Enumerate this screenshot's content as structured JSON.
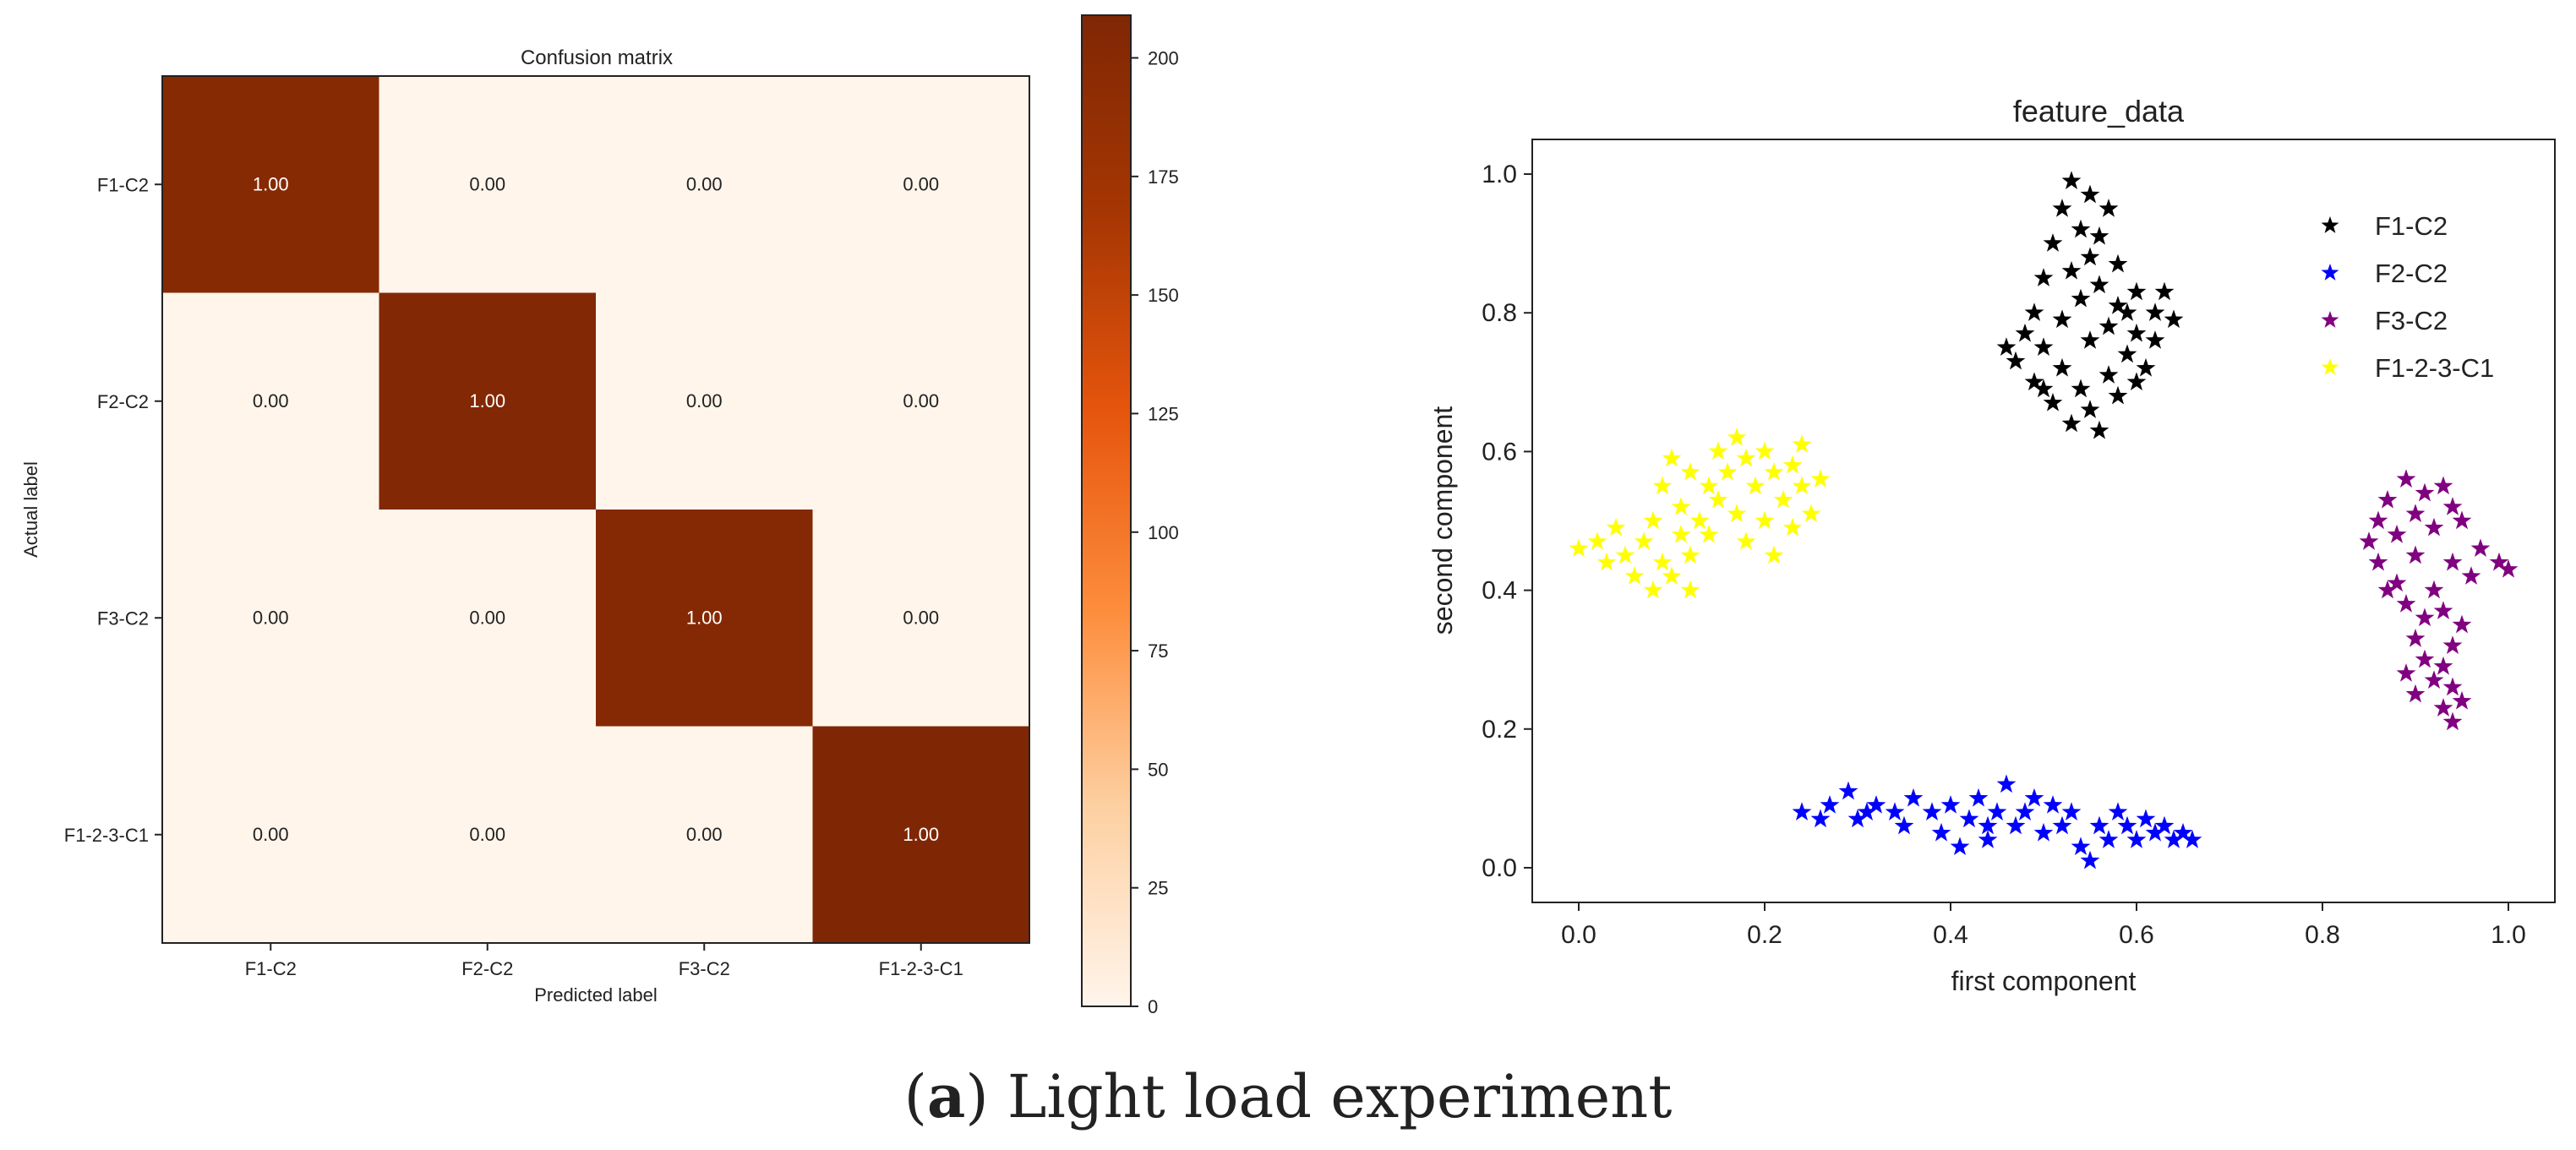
{
  "chart_data": [
    {
      "type": "heatmap",
      "title": "Confusion matrix",
      "xlabel": "Predicted label",
      "ylabel": "Actual label",
      "x_categories": [
        "F1-C2",
        "F2-C2",
        "F3-C2",
        "F1-2-3-C1"
      ],
      "y_categories": [
        "F1-C2",
        "F2-C2",
        "F3-C2",
        "F1-2-3-C1"
      ],
      "cell_labels": [
        [
          "1.00",
          "0.00",
          "0.00",
          "0.00"
        ],
        [
          "0.00",
          "1.00",
          "0.00",
          "0.00"
        ],
        [
          "0.00",
          "0.00",
          "1.00",
          "0.00"
        ],
        [
          "0.00",
          "0.00",
          "0.00",
          "1.00"
        ]
      ],
      "counts": [
        [
          201,
          0,
          0,
          0
        ],
        [
          0,
          206,
          0,
          0
        ],
        [
          0,
          0,
          203,
          0
        ],
        [
          0,
          0,
          0,
          209
        ]
      ],
      "colorbar": {
        "range": [
          0,
          209
        ],
        "ticks": [
          0,
          25,
          50,
          75,
          100,
          125,
          150,
          175,
          200
        ],
        "colormap": "Oranges",
        "colors": [
          "#fff5eb",
          "#fdd0a2",
          "#fd8d3c",
          "#e6550d",
          "#a63603",
          "#7f2704"
        ]
      },
      "grid": false
    },
    {
      "type": "scatter",
      "title": "feature_data",
      "xlabel": "first component",
      "ylabel": "second component",
      "xlim": [
        -0.05,
        1.05
      ],
      "ylim": [
        -0.05,
        1.05
      ],
      "xticks": [
        0.0,
        0.2,
        0.4,
        0.6,
        0.8,
        1.0
      ],
      "yticks": [
        0.0,
        0.2,
        0.4,
        0.6,
        0.8,
        1.0
      ],
      "marker": "star",
      "legend_position": "top-right",
      "grid": false,
      "series": [
        {
          "name": "F1-C2",
          "color": "#000000",
          "points": [
            [
              0.53,
              0.99
            ],
            [
              0.55,
              0.97
            ],
            [
              0.57,
              0.95
            ],
            [
              0.52,
              0.95
            ],
            [
              0.54,
              0.92
            ],
            [
              0.56,
              0.91
            ],
            [
              0.51,
              0.9
            ],
            [
              0.55,
              0.88
            ],
            [
              0.58,
              0.87
            ],
            [
              0.53,
              0.86
            ],
            [
              0.5,
              0.85
            ],
            [
              0.56,
              0.84
            ],
            [
              0.6,
              0.83
            ],
            [
              0.63,
              0.83
            ],
            [
              0.54,
              0.82
            ],
            [
              0.58,
              0.81
            ],
            [
              0.62,
              0.8
            ],
            [
              0.49,
              0.8
            ],
            [
              0.52,
              0.79
            ],
            [
              0.57,
              0.78
            ],
            [
              0.6,
              0.77
            ],
            [
              0.64,
              0.79
            ],
            [
              0.48,
              0.77
            ],
            [
              0.5,
              0.75
            ],
            [
              0.55,
              0.76
            ],
            [
              0.59,
              0.74
            ],
            [
              0.62,
              0.76
            ],
            [
              0.47,
              0.73
            ],
            [
              0.52,
              0.72
            ],
            [
              0.57,
              0.71
            ],
            [
              0.61,
              0.72
            ],
            [
              0.49,
              0.7
            ],
            [
              0.54,
              0.69
            ],
            [
              0.58,
              0.68
            ],
            [
              0.51,
              0.67
            ],
            [
              0.55,
              0.66
            ],
            [
              0.53,
              0.64
            ],
            [
              0.56,
              0.63
            ],
            [
              0.5,
              0.69
            ],
            [
              0.6,
              0.7
            ],
            [
              0.46,
              0.75
            ],
            [
              0.59,
              0.8
            ]
          ]
        },
        {
          "name": "F2-C2",
          "color": "#0000ff",
          "points": [
            [
              0.24,
              0.08
            ],
            [
              0.27,
              0.09
            ],
            [
              0.29,
              0.11
            ],
            [
              0.3,
              0.07
            ],
            [
              0.32,
              0.09
            ],
            [
              0.34,
              0.08
            ],
            [
              0.36,
              0.1
            ],
            [
              0.38,
              0.08
            ],
            [
              0.39,
              0.05
            ],
            [
              0.4,
              0.09
            ],
            [
              0.41,
              0.03
            ],
            [
              0.42,
              0.07
            ],
            [
              0.43,
              0.1
            ],
            [
              0.44,
              0.06
            ],
            [
              0.45,
              0.08
            ],
            [
              0.46,
              0.12
            ],
            [
              0.47,
              0.06
            ],
            [
              0.48,
              0.08
            ],
            [
              0.5,
              0.05
            ],
            [
              0.51,
              0.09
            ],
            [
              0.52,
              0.06
            ],
            [
              0.53,
              0.08
            ],
            [
              0.54,
              0.03
            ],
            [
              0.55,
              0.01
            ],
            [
              0.56,
              0.06
            ],
            [
              0.57,
              0.04
            ],
            [
              0.58,
              0.08
            ],
            [
              0.59,
              0.06
            ],
            [
              0.6,
              0.04
            ],
            [
              0.61,
              0.07
            ],
            [
              0.62,
              0.05
            ],
            [
              0.63,
              0.06
            ],
            [
              0.64,
              0.04
            ],
            [
              0.65,
              0.05
            ],
            [
              0.66,
              0.04
            ],
            [
              0.35,
              0.06
            ],
            [
              0.31,
              0.08
            ],
            [
              0.26,
              0.07
            ],
            [
              0.49,
              0.1
            ],
            [
              0.44,
              0.04
            ]
          ]
        },
        {
          "name": "F3-C2",
          "color": "#800080",
          "points": [
            [
              0.87,
              0.53
            ],
            [
              0.89,
              0.56
            ],
            [
              0.91,
              0.54
            ],
            [
              0.93,
              0.55
            ],
            [
              0.86,
              0.5
            ],
            [
              0.9,
              0.51
            ],
            [
              0.94,
              0.52
            ],
            [
              0.85,
              0.47
            ],
            [
              0.88,
              0.48
            ],
            [
              0.92,
              0.49
            ],
            [
              0.95,
              0.5
            ],
            [
              0.97,
              0.46
            ],
            [
              0.99,
              0.44
            ],
            [
              1.0,
              0.43
            ],
            [
              0.86,
              0.44
            ],
            [
              0.9,
              0.45
            ],
            [
              0.94,
              0.44
            ],
            [
              0.96,
              0.42
            ],
            [
              0.88,
              0.41
            ],
            [
              0.92,
              0.4
            ],
            [
              0.89,
              0.38
            ],
            [
              0.91,
              0.36
            ],
            [
              0.93,
              0.37
            ],
            [
              0.95,
              0.35
            ],
            [
              0.9,
              0.33
            ],
            [
              0.94,
              0.32
            ],
            [
              0.91,
              0.3
            ],
            [
              0.93,
              0.29
            ],
            [
              0.89,
              0.28
            ],
            [
              0.92,
              0.27
            ],
            [
              0.94,
              0.26
            ],
            [
              0.9,
              0.25
            ],
            [
              0.93,
              0.23
            ],
            [
              0.94,
              0.21
            ],
            [
              0.95,
              0.24
            ],
            [
              0.87,
              0.4
            ]
          ]
        },
        {
          "name": "F1-2-3-C1",
          "color": "#ffff00",
          "points": [
            [
              0.0,
              0.46
            ],
            [
              0.02,
              0.47
            ],
            [
              0.03,
              0.44
            ],
            [
              0.04,
              0.49
            ],
            [
              0.05,
              0.45
            ],
            [
              0.06,
              0.42
            ],
            [
              0.07,
              0.47
            ],
            [
              0.08,
              0.4
            ],
            [
              0.09,
              0.44
            ],
            [
              0.1,
              0.42
            ],
            [
              0.11,
              0.48
            ],
            [
              0.12,
              0.45
            ],
            [
              0.13,
              0.5
            ],
            [
              0.14,
              0.48
            ],
            [
              0.11,
              0.52
            ],
            [
              0.09,
              0.55
            ],
            [
              0.1,
              0.59
            ],
            [
              0.12,
              0.57
            ],
            [
              0.14,
              0.55
            ],
            [
              0.15,
              0.6
            ],
            [
              0.16,
              0.57
            ],
            [
              0.17,
              0.62
            ],
            [
              0.18,
              0.59
            ],
            [
              0.19,
              0.55
            ],
            [
              0.2,
              0.6
            ],
            [
              0.21,
              0.57
            ],
            [
              0.22,
              0.53
            ],
            [
              0.23,
              0.58
            ],
            [
              0.24,
              0.55
            ],
            [
              0.25,
              0.51
            ],
            [
              0.26,
              0.56
            ],
            [
              0.23,
              0.49
            ],
            [
              0.2,
              0.5
            ],
            [
              0.17,
              0.51
            ],
            [
              0.15,
              0.53
            ],
            [
              0.18,
              0.47
            ],
            [
              0.21,
              0.45
            ],
            [
              0.08,
              0.5
            ],
            [
              0.12,
              0.4
            ],
            [
              0.24,
              0.61
            ]
          ]
        }
      ]
    }
  ],
  "caption": {
    "letter": "a",
    "text": " Light load experiment"
  }
}
